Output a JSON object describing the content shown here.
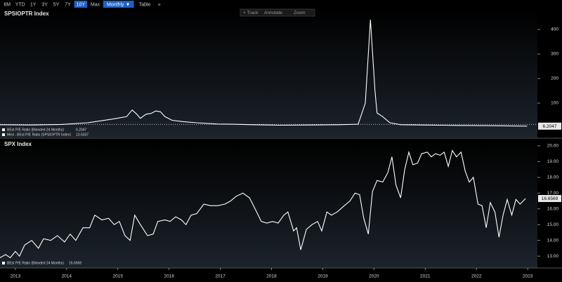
{
  "toolbar": {
    "buttons": [
      "6M",
      "YTD",
      "1Y",
      "3Y",
      "5Y",
      "7Y",
      "10Y",
      "Max",
      "Monthly ▼",
      "Table",
      "»"
    ],
    "selected": [
      "10Y",
      "Monthly ▼"
    ],
    "tools": [
      "+ Track",
      "Annotate",
      "Zoom"
    ]
  },
  "chart_data": [
    {
      "type": "line",
      "title": "SPSIOPTR Index",
      "x": [
        2012.7,
        2013.3,
        2013.9,
        2014.41,
        2014.89,
        2015.17,
        2015.28,
        2015.37,
        2015.44,
        2015.55,
        2015.65,
        2015.74,
        2015.83,
        2015.92,
        2016.06,
        2016.26,
        2016.54,
        2016.95,
        2017.23,
        2017.64,
        2018.19,
        2018.73,
        2019.28,
        2019.69,
        2019.83,
        2019.93,
        2020.02,
        2020.06,
        2020.17,
        2020.31,
        2020.52,
        2020.93,
        2021.61,
        2022.3,
        2022.99
      ],
      "series": [
        {
          "name": "BEst P/E Ratio (Blended 24 Months)",
          "color": "#ffffff",
          "values": [
            12,
            11,
            13,
            20,
            35,
            45,
            72,
            55,
            38,
            55,
            58,
            68,
            65,
            45,
            30,
            25,
            20,
            15,
            14,
            12,
            10,
            11,
            12,
            14,
            100,
            440,
            150,
            60,
            45,
            20,
            12,
            11,
            9,
            8,
            6.2047
          ]
        }
      ],
      "median": {
        "name": "Med - BEst P/E Ratio (SPSIOPTR Index)",
        "value": 13.6337,
        "color": "#ffffff"
      },
      "xlim": [
        2012.7,
        2023.19
      ],
      "ylim": [
        -40,
        440
      ],
      "yticks": [
        100,
        200,
        300,
        400
      ]
    },
    {
      "type": "line",
      "title": "SPX Index",
      "x": [
        2012.7,
        2012.81,
        2012.9,
        2013.0,
        2013.08,
        2013.18,
        2013.32,
        2013.45,
        2013.55,
        2013.69,
        2013.82,
        2013.96,
        2014.07,
        2014.18,
        2014.32,
        2014.45,
        2014.55,
        2014.69,
        2014.82,
        2014.93,
        2015.03,
        2015.14,
        2015.24,
        2015.33,
        2015.44,
        2015.58,
        2015.69,
        2015.78,
        2015.92,
        2016.02,
        2016.13,
        2016.24,
        2016.33,
        2016.43,
        2016.54,
        2016.68,
        2016.81,
        2016.95,
        2017.09,
        2017.2,
        2017.31,
        2017.44,
        2017.57,
        2017.71,
        2017.8,
        2017.91,
        2018.02,
        2018.13,
        2018.24,
        2018.32,
        2018.43,
        2018.49,
        2018.57,
        2018.68,
        2018.79,
        2018.9,
        2018.98,
        2019.08,
        2019.17,
        2019.28,
        2019.42,
        2019.53,
        2019.63,
        2019.72,
        2019.8,
        2019.89,
        2019.97,
        2020.06,
        2020.17,
        2020.27,
        2020.35,
        2020.43,
        2020.52,
        2020.6,
        2020.68,
        2020.76,
        2020.85,
        2020.93,
        2021.04,
        2021.12,
        2021.2,
        2021.29,
        2021.37,
        2021.45,
        2021.53,
        2021.61,
        2021.7,
        2021.78,
        2021.86,
        2021.94,
        2022.03,
        2022.11,
        2022.19,
        2022.27,
        2022.36,
        2022.44,
        2022.52,
        2022.6,
        2022.69,
        2022.77,
        2022.85,
        2022.96
      ],
      "series": [
        {
          "name": "BEst P/E Ratio (Blended 24 Months)",
          "color": "#ffffff",
          "values": [
            12.9,
            13.1,
            12.9,
            13.3,
            13.0,
            13.7,
            14.0,
            13.5,
            14.1,
            14.0,
            14.3,
            13.9,
            14.4,
            14.0,
            14.8,
            14.8,
            15.6,
            15.3,
            15.4,
            15.0,
            15.2,
            14.3,
            14.0,
            15.6,
            15.0,
            14.3,
            14.4,
            15.2,
            15.3,
            15.2,
            15.5,
            15.3,
            15.0,
            15.6,
            15.7,
            16.3,
            16.2,
            16.2,
            16.3,
            16.5,
            16.8,
            17.0,
            16.7,
            15.8,
            15.2,
            15.1,
            15.2,
            15.1,
            15.6,
            15.8,
            14.6,
            14.8,
            13.4,
            14.7,
            15.0,
            15.2,
            14.6,
            15.8,
            15.6,
            15.8,
            16.2,
            16.5,
            17.0,
            16.9,
            15.4,
            14.4,
            17.1,
            17.8,
            17.7,
            18.3,
            19.3,
            17.5,
            16.7,
            18.5,
            19.6,
            18.8,
            18.9,
            19.5,
            19.6,
            19.3,
            19.5,
            19.4,
            19.6,
            18.7,
            19.7,
            19.3,
            19.6,
            18.4,
            17.7,
            18.0,
            16.3,
            16.2,
            14.8,
            16.4,
            15.8,
            14.2,
            15.6,
            16.6,
            15.6,
            16.6,
            16.3,
            16.6569
          ]
        }
      ],
      "xlim": [
        2012.7,
        2023.19
      ],
      "ylim": [
        12.25,
        20.35
      ],
      "yticks": [
        {
          "value": 13,
          "label": "13.00"
        },
        {
          "value": 14,
          "label": "14.00"
        },
        {
          "value": 15,
          "label": "15.00"
        },
        {
          "value": 16,
          "label": "16.00"
        },
        {
          "value": 17,
          "label": "17.00"
        },
        {
          "value": 18,
          "label": "18.00"
        },
        {
          "value": 19,
          "label": "19.00"
        },
        {
          "value": 20,
          "label": "20.00"
        }
      ],
      "xticks": [
        2013,
        2014,
        2015,
        2016,
        2017,
        2018,
        2019,
        2020,
        2021,
        2022,
        2023
      ]
    }
  ]
}
